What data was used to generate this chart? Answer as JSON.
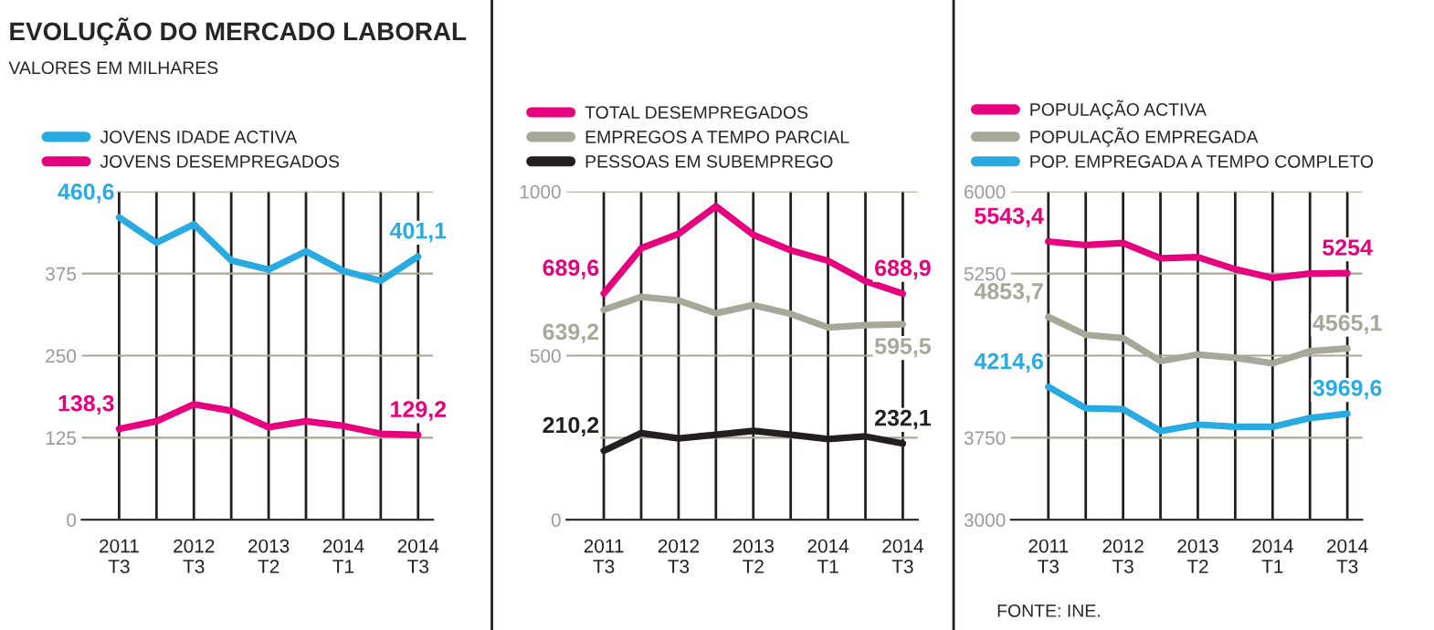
{
  "chart_data": [
    {
      "type": "line",
      "title": "EVOLUÇÃO DO MERCADO LABORAL",
      "subtitle": "VALORES EM MILHARES",
      "categories": [
        "2011\nT3",
        null,
        "2012\nT3",
        null,
        "2013\nT2",
        null,
        "2014\nT1",
        null,
        "2014\nT3"
      ],
      "series": [
        {
          "name": "JOVENS IDADE ACTIVA",
          "color": "#29abe2",
          "values": [
            460.6,
            422,
            450,
            395,
            381,
            409,
            379,
            364,
            401.1
          ],
          "value_labels": [
            "460,6",
            null,
            null,
            null,
            null,
            null,
            null,
            null,
            "401,1"
          ]
        },
        {
          "name": "JOVENS DESEMPREGADOS",
          "color": "#e6007e",
          "values": [
            138.3,
            150,
            176,
            166,
            141,
            150,
            143,
            131,
            129.2
          ],
          "value_labels": [
            "138,3",
            null,
            null,
            null,
            null,
            null,
            null,
            null,
            "129,2"
          ]
        }
      ],
      "ylim": [
        0,
        500
      ],
      "yticks": [
        0,
        125,
        250,
        375,
        {
          "value": 500,
          "label": null
        }
      ],
      "grid": true,
      "legend": "top"
    },
    {
      "type": "line",
      "categories": [
        "2011\nT3",
        null,
        "2012\nT3",
        null,
        "2013\nT2",
        null,
        "2014\nT1",
        null,
        "2014\nT3"
      ],
      "series": [
        {
          "name": "TOTAL DESEMPREGADOS",
          "color": "#e6007e",
          "values": [
            689.6,
            827,
            871,
            955,
            868,
            821,
            789,
            727,
            688.9
          ],
          "value_labels": [
            "689,6",
            null,
            null,
            null,
            null,
            null,
            null,
            null,
            "688,9"
          ]
        },
        {
          "name": "EMPREGOS A TEMPO PARCIAL",
          "color": "#a8a89a",
          "values": [
            639.2,
            679,
            668,
            629,
            654,
            627,
            586,
            593,
            595.5
          ],
          "value_labels": [
            "639,2",
            null,
            null,
            null,
            null,
            null,
            null,
            null,
            "595,5"
          ]
        },
        {
          "name": "PESSOAS EM SUBEMPREGO",
          "color": "#231f20",
          "values": [
            210.2,
            264,
            248,
            259,
            271,
            259,
            246,
            254,
            232.1
          ],
          "value_labels": [
            "210,2",
            null,
            null,
            null,
            null,
            null,
            null,
            null,
            "232,1"
          ]
        }
      ],
      "ylim": [
        0,
        1000
      ],
      "yticks": [
        0,
        {
          "value": 250,
          "label": null
        },
        500,
        1000
      ],
      "grid": true,
      "legend": "top"
    },
    {
      "type": "line",
      "categories": [
        "2011\nT3",
        null,
        "2012\nT3",
        null,
        "2013\nT2",
        null,
        "2014\nT1",
        null,
        "2014\nT3"
      ],
      "series": [
        {
          "name": "POPULAÇÃO ACTIVA",
          "color": "#e6007e",
          "values": [
            5543.4,
            5510,
            5530,
            5390,
            5400,
            5290,
            5210,
            5250,
            5254
          ],
          "value_labels": [
            "5543,4",
            null,
            null,
            null,
            null,
            null,
            null,
            null,
            "5254"
          ]
        },
        {
          "name": "POPULAÇÃO EMPREGADA",
          "color": "#a8a89a",
          "values": [
            4853.7,
            4690,
            4660,
            4450,
            4510,
            4480,
            4430,
            4540,
            4565.1
          ],
          "value_labels": [
            "4853,7",
            null,
            null,
            null,
            null,
            null,
            null,
            null,
            "4565,1"
          ]
        },
        {
          "name": "POP. EMPREGADA A TEMPO COMPLETO",
          "color": "#29abe2",
          "values": [
            4214.6,
            4020,
            4010,
            3810,
            3870,
            3850,
            3850,
            3930,
            3969.6
          ],
          "value_labels": [
            "4214,6",
            null,
            null,
            null,
            null,
            null,
            null,
            null,
            "3969,6"
          ]
        }
      ],
      "ylim": [
        3000,
        6000
      ],
      "yticks": [
        3000,
        3750,
        {
          "value": 4500,
          "label": null
        },
        5250,
        6000
      ],
      "grid": true,
      "legend": "top",
      "annotations": [
        "FONTE: INE."
      ]
    }
  ]
}
